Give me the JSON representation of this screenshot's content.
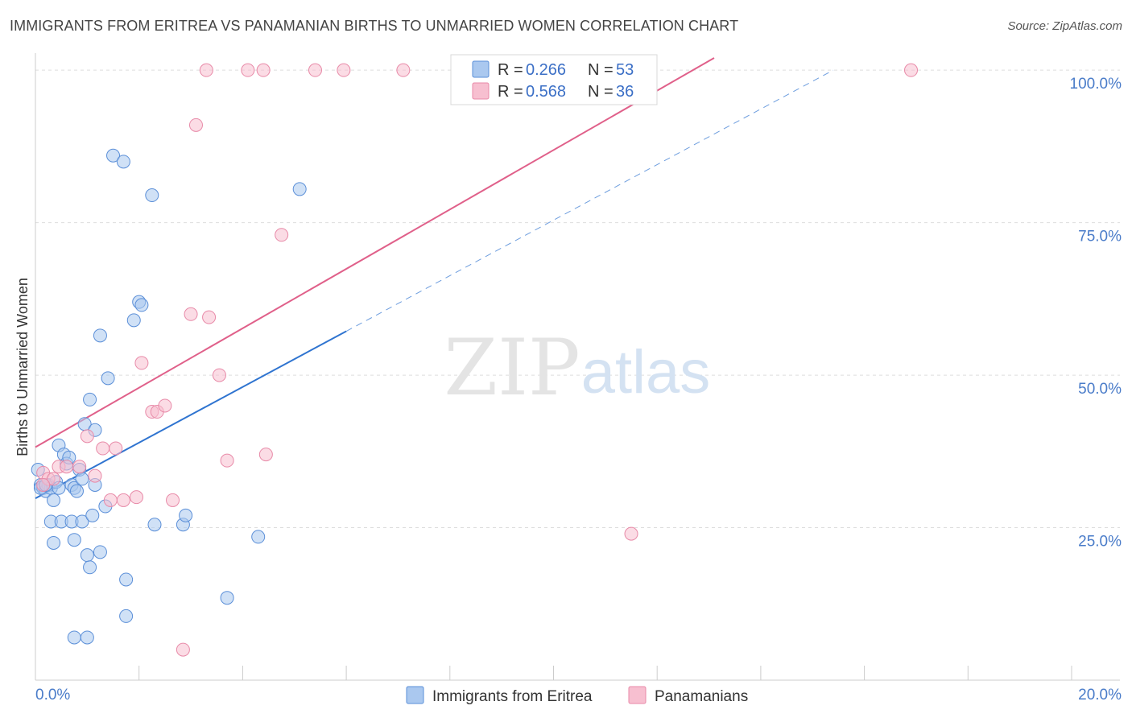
{
  "title": "IMMIGRANTS FROM ERITREA VS PANAMANIAN BIRTHS TO UNMARRIED WOMEN CORRELATION CHART",
  "source": "Source: ZipAtlas.com",
  "watermark": {
    "zip": "ZIP",
    "atlas": "atlas"
  },
  "colors": {
    "blue_fill": "#aac8ef",
    "blue_stroke": "#5b8fd8",
    "blue_line": "#2f74d0",
    "pink_fill": "#f7bfd0",
    "pink_stroke": "#e88aa8",
    "pink_line": "#e0608a",
    "grid": "#dddddd",
    "tick_text": "#4a7cc9"
  },
  "legend": {
    "entries": [
      {
        "r_label": "R = ",
        "r_value": "0.266",
        "n_label": "N = ",
        "n_value": "53",
        "color": "blue"
      },
      {
        "r_label": "R = ",
        "r_value": "0.568",
        "n_label": "N = ",
        "n_value": "36",
        "color": "pink"
      }
    ]
  },
  "chart_data": {
    "type": "scatter",
    "title": "IMMIGRANTS FROM ERITREA VS PANAMANIAN BIRTHS TO UNMARRIED WOMEN CORRELATION CHART",
    "xlabel": "",
    "ylabel": "Births to Unmarried Women",
    "xlim": [
      0,
      20
    ],
    "ylim": [
      0,
      102
    ],
    "x_tick_labels": [
      "0.0%",
      "20.0%"
    ],
    "y_ticks": [
      {
        "value": 25,
        "label": "25.0%"
      },
      {
        "value": 50,
        "label": "50.0%"
      },
      {
        "value": 75,
        "label": "75.0%"
      },
      {
        "value": 100,
        "label": "100.0%"
      }
    ],
    "grid": true,
    "legend_position": "bottom",
    "series": [
      {
        "name": "Immigrants from Eritrea",
        "color": "blue",
        "points": [
          [
            0.05,
            34.5
          ],
          [
            0.1,
            32
          ],
          [
            0.15,
            31.5
          ],
          [
            0.2,
            31
          ],
          [
            0.25,
            32
          ],
          [
            0.3,
            31.5
          ],
          [
            0.3,
            26
          ],
          [
            0.35,
            22.5
          ],
          [
            0.35,
            29.5
          ],
          [
            0.4,
            32.5
          ],
          [
            0.45,
            31.5
          ],
          [
            0.45,
            38.5
          ],
          [
            0.5,
            26
          ],
          [
            0.55,
            37
          ],
          [
            0.6,
            35.5
          ],
          [
            0.65,
            36.5
          ],
          [
            0.7,
            32
          ],
          [
            0.7,
            26
          ],
          [
            0.75,
            23
          ],
          [
            0.75,
            31.5
          ],
          [
            0.8,
            31
          ],
          [
            0.85,
            34.5
          ],
          [
            0.9,
            33
          ],
          [
            0.9,
            26
          ],
          [
            0.95,
            42
          ],
          [
            1.0,
            20.5
          ],
          [
            1.05,
            46
          ],
          [
            1.05,
            18.5
          ],
          [
            1.1,
            27
          ],
          [
            1.15,
            41
          ],
          [
            1.15,
            32
          ],
          [
            1.25,
            21
          ],
          [
            1.25,
            56.5
          ],
          [
            1.35,
            28.5
          ],
          [
            1.4,
            49.5
          ],
          [
            1.5,
            86
          ],
          [
            1.7,
            85
          ],
          [
            1.75,
            16.5
          ],
          [
            1.75,
            10.5
          ],
          [
            1.9,
            59
          ],
          [
            2.0,
            62
          ],
          [
            2.05,
            61.5
          ],
          [
            2.25,
            79.5
          ],
          [
            2.3,
            25.5
          ],
          [
            2.85,
            25.5
          ],
          [
            2.9,
            27
          ],
          [
            3.7,
            13.5
          ],
          [
            4.3,
            23.5
          ],
          [
            5.1,
            80.5
          ],
          [
            1.0,
            7
          ],
          [
            0.75,
            7
          ],
          [
            0.1,
            31.5
          ],
          [
            0.2,
            32
          ]
        ]
      },
      {
        "name": "Panamanians",
        "color": "pink",
        "points": [
          [
            0.15,
            34
          ],
          [
            0.25,
            33
          ],
          [
            0.35,
            33
          ],
          [
            0.45,
            35
          ],
          [
            0.6,
            35
          ],
          [
            0.85,
            35
          ],
          [
            1.0,
            40
          ],
          [
            1.15,
            33.5
          ],
          [
            1.3,
            38
          ],
          [
            1.45,
            29.5
          ],
          [
            1.55,
            38
          ],
          [
            1.7,
            29.5
          ],
          [
            1.95,
            30
          ],
          [
            2.05,
            52
          ],
          [
            2.25,
            44
          ],
          [
            2.35,
            44
          ],
          [
            2.5,
            45
          ],
          [
            2.65,
            29.5
          ],
          [
            2.85,
            5
          ],
          [
            3.0,
            60
          ],
          [
            3.1,
            91
          ],
          [
            3.3,
            100
          ],
          [
            3.35,
            59.5
          ],
          [
            3.55,
            50
          ],
          [
            3.7,
            36
          ],
          [
            4.1,
            100
          ],
          [
            4.4,
            100
          ],
          [
            4.45,
            37
          ],
          [
            4.75,
            73
          ],
          [
            5.4,
            100
          ],
          [
            5.95,
            100
          ],
          [
            7.1,
            100
          ],
          [
            9.8,
            100
          ],
          [
            11.5,
            24
          ],
          [
            16.9,
            100
          ],
          [
            0.15,
            32
          ]
        ]
      }
    ],
    "trendlines": [
      {
        "series": "Immigrants from Eritrea",
        "x": [
          0,
          6.0
        ],
        "y": [
          29.8,
          57.2
        ],
        "style": "solid"
      },
      {
        "series": "Immigrants from Eritrea",
        "x": [
          6.0,
          15.4
        ],
        "y": [
          57.2,
          100
        ],
        "style": "dashed"
      },
      {
        "series": "Panamanians",
        "x": [
          0,
          13.1
        ],
        "y": [
          38.2,
          102
        ],
        "style": "solid"
      }
    ]
  },
  "bottom_legend": [
    {
      "label": "Immigrants from Eritrea",
      "color": "blue"
    },
    {
      "label": "Panamanians",
      "color": "pink"
    }
  ]
}
